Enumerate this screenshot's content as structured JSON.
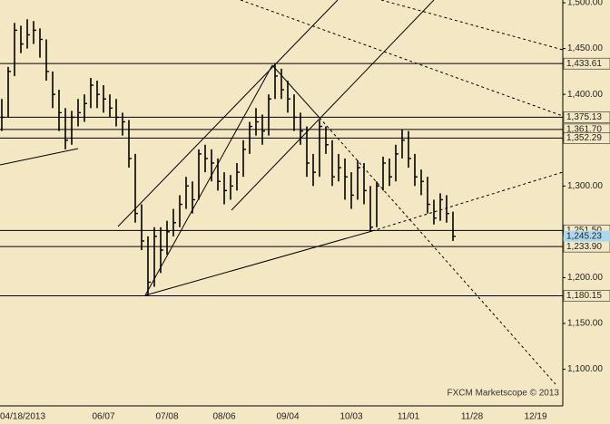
{
  "chart_data": {
    "type": "ohlc",
    "categories": [
      "04/18/2013",
      null,
      null,
      null,
      null,
      null,
      null,
      null,
      null,
      null,
      null,
      null,
      null,
      null,
      null,
      null,
      "06/07",
      null,
      null,
      null,
      null,
      null,
      null,
      null,
      null,
      null,
      "07/08",
      null,
      null,
      null,
      null,
      null,
      null,
      null,
      null,
      "08/06",
      null,
      null,
      null,
      null,
      null,
      null,
      null,
      null,
      null,
      "09/04",
      null,
      null,
      null,
      null,
      null,
      null,
      null,
      null,
      null,
      "10/03",
      null,
      null,
      null,
      null,
      null,
      null,
      null,
      null,
      "11/01",
      null,
      null,
      null,
      null,
      null,
      null,
      null,
      null,
      null,
      "11/28",
      null,
      null,
      null,
      null,
      null,
      null,
      null,
      null,
      null,
      "12/19",
      null,
      null,
      null,
      null
    ],
    "high": [
      1395,
      1430,
      1478,
      1475,
      1482,
      1480,
      1472,
      1460,
      1425,
      1405,
      1385,
      1382,
      1395,
      1400,
      1418,
      1415,
      1410,
      1400,
      1395,
      1380,
      1372,
      1335,
      1280,
      1245,
      1255,
      1255,
      1262,
      1275,
      1290,
      1310,
      1305,
      1340,
      1345,
      1340,
      1330,
      1315,
      1312,
      1325,
      1350,
      1370,
      1385,
      1378,
      1400,
      1434,
      1428,
      1415,
      1400,
      1380,
      1365,
      1335,
      1372,
      1365,
      1350,
      1335,
      1330,
      1315,
      1328,
      1325,
      1300,
      1305,
      1332,
      1330,
      1345,
      1362,
      1360,
      1335,
      1318,
      1310,
      1285,
      1292,
      1290,
      1272,
      null,
      null,
      null,
      null,
      null,
      null,
      null,
      null,
      null,
      null,
      null,
      null,
      null,
      null,
      null,
      null,
      null
    ],
    "low": [
      1360,
      1375,
      1420,
      1445,
      1450,
      1455,
      1440,
      1415,
      1385,
      1360,
      1340,
      1345,
      1365,
      1370,
      1385,
      1385,
      1380,
      1375,
      1365,
      1355,
      1320,
      1260,
      1230,
      1180,
      1190,
      1205,
      1225,
      1245,
      1255,
      1275,
      1270,
      1285,
      1315,
      1305,
      1295,
      1280,
      1285,
      1295,
      1310,
      1335,
      1355,
      1345,
      1355,
      1395,
      1395,
      1380,
      1360,
      1345,
      1310,
      1300,
      1310,
      1335,
      1300,
      1305,
      1285,
      1275,
      1285,
      1280,
      1250,
      1255,
      1295,
      1300,
      1305,
      1330,
      1320,
      1300,
      1290,
      1270,
      1258,
      1262,
      1260,
      1240,
      null,
      null,
      null,
      null,
      null,
      null,
      null,
      null,
      null,
      null,
      null,
      null,
      null,
      null,
      null,
      null,
      null
    ],
    "close": [
      1375,
      1425,
      1470,
      1455,
      1465,
      1470,
      1460,
      1425,
      1400,
      1380,
      1350,
      1375,
      1380,
      1390,
      1410,
      1400,
      1395,
      1385,
      1375,
      1370,
      1330,
      1270,
      1240,
      1195,
      1245,
      1230,
      1250,
      1260,
      1280,
      1300,
      1285,
      1335,
      1330,
      1325,
      1305,
      1295,
      1300,
      1315,
      1340,
      1365,
      1370,
      1360,
      1395,
      1420,
      1405,
      1395,
      1375,
      1360,
      1325,
      1315,
      1365,
      1345,
      1310,
      1320,
      1310,
      1290,
      1320,
      1295,
      1255,
      1300,
      1325,
      1310,
      1335,
      1350,
      1330,
      1310,
      1305,
      1280,
      1265,
      1285,
      1270,
      1245,
      null,
      null,
      null,
      null,
      null,
      null,
      null,
      null,
      null,
      null,
      null,
      null,
      null,
      null,
      null,
      null,
      null
    ],
    "color": "#000000",
    "ylim": [
      1060,
      1503
    ],
    "yticks": [
      {
        "value": 1100,
        "label": "1,100.00"
      },
      {
        "value": 1150,
        "label": "1,150.00"
      },
      {
        "value": 1200,
        "label": "1,200.00"
      },
      {
        "value": 1250,
        "label": "1,250.00"
      },
      {
        "value": 1300,
        "label": "1,300.00"
      },
      {
        "value": 1350,
        "label": "1,350.00"
      },
      {
        "value": 1400,
        "label": "1,400.00"
      },
      {
        "value": 1450,
        "label": "1,450.00"
      },
      {
        "value": 1500,
        "label": "1,500.00"
      }
    ],
    "levels": [
      {
        "value": 1433.61,
        "label": "1,433.61"
      },
      {
        "value": 1375.13,
        "label": "1,375.13"
      },
      {
        "value": 1361.7,
        "label": "1,361.70"
      },
      {
        "value": 1352.29,
        "label": "1,352.29"
      },
      {
        "value": 1251.5,
        "label": "1,251.50"
      },
      {
        "value": 1233.9,
        "label": "1,233.90"
      },
      {
        "value": 1180.15,
        "label": "1,180.15"
      }
    ],
    "current": {
      "value": 1245.23,
      "label": "1,245.23"
    },
    "watermark": "FXCM Marketscope © 2013"
  }
}
